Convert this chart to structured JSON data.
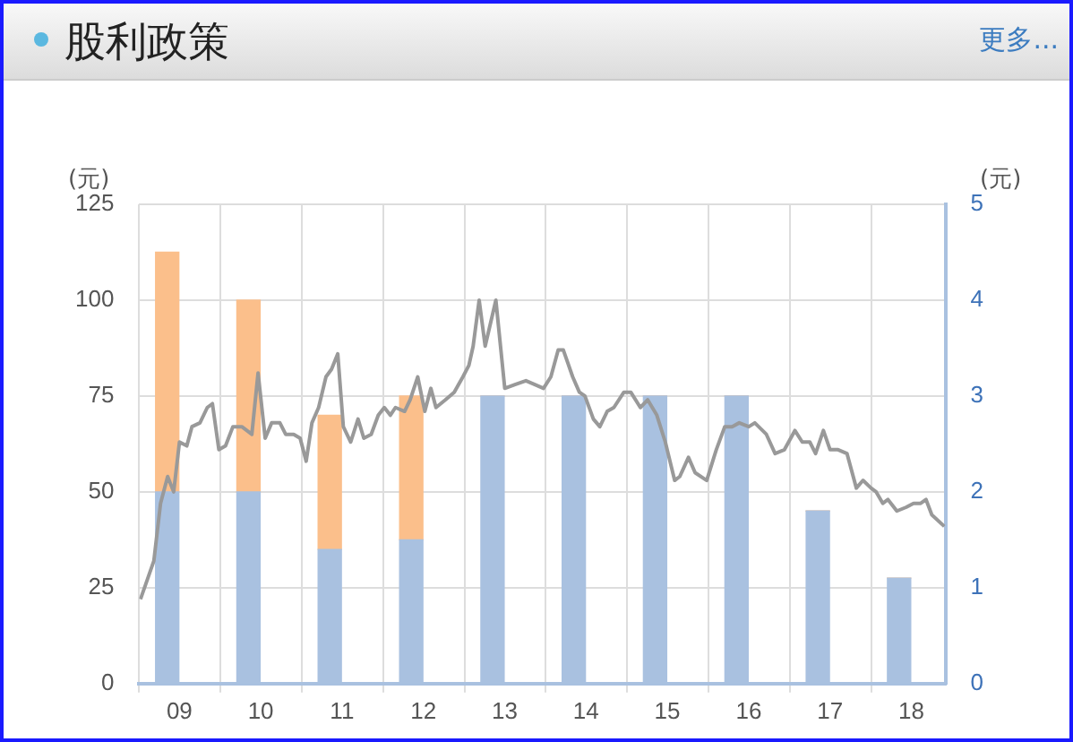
{
  "chart_data": {
    "type": "bar",
    "title": "股利政策",
    "ylabel": "(元)",
    "y2label": "(元)",
    "annotations": [
      "更多..."
    ],
    "x": [
      "2009-05-07",
      "2010-05-07",
      "2011-05-07",
      "2012-05-07",
      "2013-05-07",
      "2014-05-07",
      "2015-05-07",
      "2016-05-07",
      "2017-05-07",
      "2018-05-07"
    ],
    "stacked": true,
    "grid": true,
    "legend": false,
    "xlim": [
      "2009-01-01",
      "2018-12-01"
    ],
    "xticks": [
      {
        "value": "2009-01-01",
        "label": null
      },
      {
        "value": "2009-07-01",
        "label": "09"
      },
      {
        "value": "2010-01-01",
        "label": null
      },
      {
        "value": "2010-07-01",
        "label": "10"
      },
      {
        "value": "2011-01-01",
        "label": null
      },
      {
        "value": "2011-07-01",
        "label": "11"
      },
      {
        "value": "2012-01-01",
        "label": null
      },
      {
        "value": "2012-07-01",
        "label": "12"
      },
      {
        "value": "2013-01-01",
        "label": null
      },
      {
        "value": "2013-07-01",
        "label": "13"
      },
      {
        "value": "2014-01-01",
        "label": null
      },
      {
        "value": "2014-07-01",
        "label": "14"
      },
      {
        "value": "2015-01-01",
        "label": null
      },
      {
        "value": "2015-07-01",
        "label": "15"
      },
      {
        "value": "2016-01-01",
        "label": null
      },
      {
        "value": "2016-07-01",
        "label": "16"
      },
      {
        "value": "2017-01-01",
        "label": null
      },
      {
        "value": "2017-07-01",
        "label": "17"
      },
      {
        "value": "2018-01-01",
        "label": null
      },
      {
        "value": "2018-07-01",
        "label": "18"
      }
    ],
    "ylim": [
      0,
      125
    ],
    "yticks": [
      0,
      25,
      50,
      75,
      100,
      125
    ],
    "y2lim": [
      0,
      5
    ],
    "y2ticks": [
      0,
      1,
      2,
      3,
      4,
      5
    ],
    "series": [
      {
        "color": "#a9c1e0",
        "axis": "y2",
        "values": [
          2,
          2,
          1.4,
          1.5,
          3,
          3,
          3,
          3,
          1.8,
          1.1
        ]
      },
      {
        "color": "#fbbf8b",
        "axis": "y2",
        "values": [
          2.5,
          2,
          1.4,
          1.5,
          0,
          0,
          0,
          0,
          0,
          0
        ]
      },
      {
        "type": "line",
        "color": "#999999",
        "axis": "y",
        "marker": "none",
        "x": [
          "2009-01-07",
          "2009-03-08",
          "2009-04-07",
          "2009-05-09",
          "2009-06-05",
          "2009-07-01",
          "2009-08-03",
          "2009-08-26",
          "2009-10-01",
          "2009-11-03",
          "2009-11-26",
          "2009-12-25",
          "2010-01-24",
          "2010-02-26",
          "2010-04-07",
          "2010-05-22",
          "2010-06-19",
          "2010-07-21",
          "2010-08-19",
          "2010-09-25",
          "2010-10-21",
          "2010-11-26",
          "2010-12-25",
          "2011-01-21",
          "2011-02-16",
          "2011-03-18",
          "2011-04-20",
          "2011-05-15",
          "2011-06-12",
          "2011-07-07",
          "2011-08-09",
          "2011-09-11",
          "2011-10-07",
          "2011-11-09",
          "2011-12-11",
          "2012-01-07",
          "2012-02-03",
          "2012-02-26",
          "2012-04-07",
          "2012-05-02",
          "2012-06-05",
          "2012-07-07",
          "2012-08-03",
          "2012-08-26",
          "2012-10-07",
          "2012-11-16",
          "2012-12-25",
          "2013-01-21",
          "2013-02-09",
          "2013-03-08",
          "2013-04-04",
          "2013-05-22",
          "2013-07-01",
          "2013-08-16",
          "2013-10-04",
          "2013-11-13",
          "2013-12-22",
          "2014-01-24",
          "2014-02-26",
          "2014-03-21",
          "2014-05-02",
          "2014-06-01",
          "2014-06-26",
          "2014-08-03",
          "2014-09-01",
          "2014-10-04",
          "2014-11-03",
          "2014-12-18",
          "2015-01-18",
          "2015-03-02",
          "2015-04-04",
          "2015-05-15",
          "2015-06-22",
          "2015-08-03",
          "2015-08-26",
          "2015-10-04",
          "2015-11-03",
          "2015-12-25",
          "2016-02-06",
          "2016-03-15",
          "2016-04-17",
          "2016-05-19",
          "2016-07-01",
          "2016-07-28",
          "2016-09-18",
          "2016-10-27",
          "2016-12-08",
          "2017-01-24",
          "2017-02-26",
          "2017-04-01",
          "2017-04-27",
          "2017-06-01",
          "2017-07-01",
          "2017-08-06",
          "2017-09-15",
          "2017-10-27",
          "2017-11-26",
          "2018-01-01",
          "2018-01-24",
          "2018-02-23",
          "2018-03-18",
          "2018-04-27",
          "2018-06-08",
          "2018-07-11",
          "2018-08-12",
          "2018-09-05",
          "2018-10-01",
          "2018-11-26"
        ],
        "values": [
          22,
          32,
          47,
          54,
          50,
          63,
          62,
          67,
          68,
          72,
          73,
          61,
          62,
          67,
          67,
          65,
          81,
          64,
          68,
          68,
          65,
          65,
          64,
          58,
          68,
          72,
          80,
          82,
          86,
          67,
          63,
          69,
          64,
          65,
          70,
          72,
          70,
          72,
          71,
          74,
          80,
          71,
          77,
          72,
          74,
          76,
          80,
          83,
          88,
          100,
          88,
          100,
          77,
          78,
          79,
          78,
          77,
          80,
          87,
          87,
          80,
          76,
          75,
          69,
          67,
          71,
          72,
          76,
          76,
          72,
          74,
          70,
          63,
          53,
          54,
          59,
          55,
          53,
          61,
          67,
          67,
          68,
          67,
          68,
          65,
          60,
          61,
          66,
          63,
          63,
          60,
          66,
          61,
          61,
          60,
          51,
          53,
          51,
          50,
          47,
          48,
          45,
          46,
          47,
          47,
          48,
          44,
          41
        ]
      }
    ]
  }
}
